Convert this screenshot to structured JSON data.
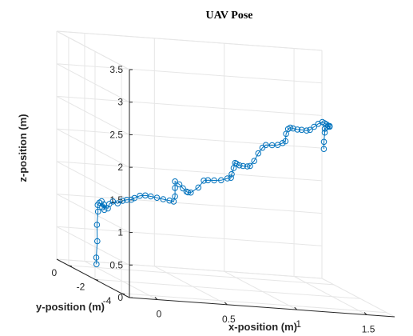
{
  "chart_data": {
    "type": "line3d",
    "title": "UAV Pose",
    "xlabel": "x-position (m)",
    "ylabel": "y-position (m)",
    "zlabel": "z-position (m)",
    "xlim": [
      -0.2,
      1.7
    ],
    "ylim": [
      -4.6,
      0.9
    ],
    "zlim": [
      0,
      3.5
    ],
    "x_ticks": [
      "0",
      "0.5",
      "1",
      "1.5"
    ],
    "y_ticks": [
      "0",
      "-2",
      "-4"
    ],
    "z_ticks": [
      "0",
      "0.5",
      "1",
      "1.5",
      "2",
      "2.5",
      "3",
      "3.5"
    ],
    "grid": true,
    "marker": "circle",
    "color": "#0072bd",
    "series": [
      {
        "points": [
          [
            0.0,
            0.0,
            0.05
          ],
          [
            0.0,
            0.02,
            0.15
          ],
          [
            0.01,
            0.05,
            0.4
          ],
          [
            0.01,
            0.07,
            0.65
          ],
          [
            0.02,
            0.1,
            0.85
          ],
          [
            0.02,
            0.12,
            0.95
          ],
          [
            0.04,
            0.2,
            0.98
          ],
          [
            0.05,
            0.1,
            0.92
          ],
          [
            0.06,
            0.25,
            1.0
          ],
          [
            0.07,
            0.15,
            0.88
          ],
          [
            0.08,
            0.3,
            0.95
          ],
          [
            0.1,
            0.2,
            0.9
          ],
          [
            0.12,
            0.3,
            0.96
          ],
          [
            0.15,
            0.35,
            1.0
          ],
          [
            0.18,
            0.3,
            0.98
          ],
          [
            0.22,
            0.35,
            1.02
          ],
          [
            0.25,
            0.35,
            1.04
          ],
          [
            0.28,
            0.32,
            1.05
          ],
          [
            0.3,
            0.3,
            1.08
          ],
          [
            0.32,
            0.1,
            1.14
          ],
          [
            0.34,
            -0.1,
            1.17
          ],
          [
            0.36,
            -0.3,
            1.18
          ],
          [
            0.4,
            -0.35,
            1.17
          ],
          [
            0.44,
            -0.4,
            1.16
          ],
          [
            0.48,
            -0.45,
            1.15
          ],
          [
            0.51,
            -0.45,
            1.14
          ],
          [
            0.52,
            -0.45,
            1.22
          ],
          [
            0.52,
            -0.45,
            1.35
          ],
          [
            0.52,
            -0.45,
            1.45
          ],
          [
            0.56,
            -0.35,
            1.4
          ],
          [
            0.6,
            -0.2,
            1.33
          ],
          [
            0.64,
            -0.05,
            1.27
          ],
          [
            0.66,
            0.05,
            1.25
          ],
          [
            0.68,
            0.05,
            1.25
          ],
          [
            0.72,
            -0.1,
            1.35
          ],
          [
            0.74,
            -0.3,
            1.48
          ],
          [
            0.76,
            -0.4,
            1.5
          ],
          [
            0.8,
            -0.45,
            1.51
          ],
          [
            0.85,
            -0.45,
            1.52
          ],
          [
            0.9,
            -0.4,
            1.55
          ],
          [
            0.93,
            -0.35,
            1.56
          ],
          [
            0.93,
            -0.4,
            1.62
          ],
          [
            0.94,
            -0.45,
            1.72
          ],
          [
            0.95,
            -0.45,
            1.8
          ],
          [
            0.97,
            -0.35,
            1.78
          ],
          [
            1.0,
            -0.25,
            1.75
          ],
          [
            1.04,
            -0.1,
            1.73
          ],
          [
            1.08,
            0.0,
            1.72
          ],
          [
            1.1,
            0.0,
            1.73
          ],
          [
            1.12,
            -0.1,
            1.82
          ],
          [
            1.14,
            -0.2,
            1.95
          ],
          [
            1.16,
            -0.3,
            2.05
          ],
          [
            1.18,
            -0.35,
            2.1
          ],
          [
            1.22,
            -0.4,
            2.11
          ],
          [
            1.26,
            -0.4,
            2.12
          ],
          [
            1.3,
            -0.35,
            2.15
          ],
          [
            1.32,
            -0.35,
            2.18
          ],
          [
            1.32,
            -0.4,
            2.3
          ],
          [
            1.33,
            -0.45,
            2.38
          ],
          [
            1.35,
            -0.4,
            2.4
          ],
          [
            1.38,
            -0.3,
            2.38
          ],
          [
            1.42,
            -0.2,
            2.36
          ],
          [
            1.46,
            -0.1,
            2.35
          ],
          [
            1.5,
            -0.05,
            2.34
          ],
          [
            1.52,
            -0.1,
            2.36
          ],
          [
            1.54,
            -0.2,
            2.42
          ],
          [
            1.56,
            -0.3,
            2.48
          ],
          [
            1.58,
            -0.4,
            2.52
          ],
          [
            1.6,
            -0.35,
            2.5
          ],
          [
            1.62,
            -0.3,
            2.48
          ],
          [
            1.64,
            -0.2,
            2.45
          ],
          [
            1.66,
            -0.1,
            2.44
          ],
          [
            1.67,
            0.0,
            2.42
          ],
          [
            1.66,
            0.1,
            2.4
          ],
          [
            1.64,
            0.05,
            2.38
          ],
          [
            1.63,
            -0.05,
            2.33
          ],
          [
            1.61,
            -0.2,
            2.2
          ],
          [
            1.6,
            -0.3,
            2.1
          ]
        ]
      }
    ]
  }
}
